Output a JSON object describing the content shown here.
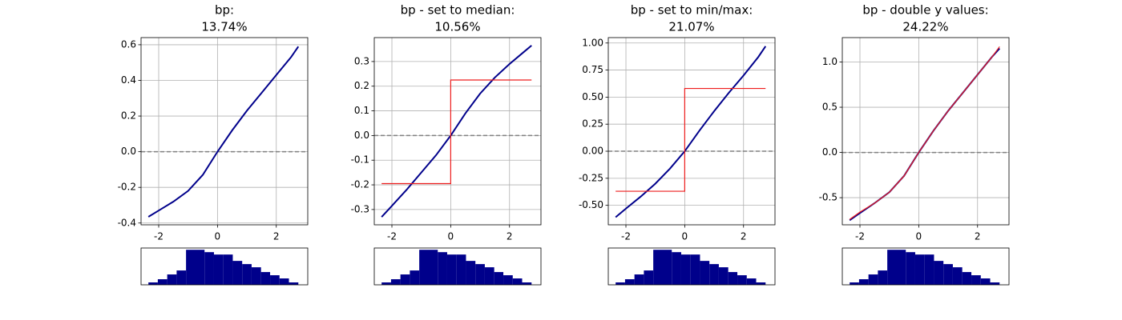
{
  "chart_data": [
    {
      "type": "line",
      "title": "bp:",
      "subtitle": "13.74%",
      "xlim": [
        -2.6,
        3.07
      ],
      "xticks": [
        -2,
        0,
        2
      ],
      "ylim": [
        -0.41,
        0.64
      ],
      "yticks": [
        -0.4,
        -0.2,
        {
          "value": 0,
          "label": "0.0"
        },
        0.2,
        0.4,
        0.6
      ],
      "grid": true,
      "reference_line": 0,
      "reference_color": "#808080",
      "series": [
        {
          "color": "#00008b",
          "x": [
            -2.35,
            -2,
            -1.5,
            -1,
            -0.5,
            0,
            0.5,
            1,
            1.5,
            2,
            2.5,
            2.75
          ],
          "values": [
            -0.365,
            -0.33,
            -0.28,
            -0.22,
            -0.13,
            0,
            0.12,
            0.23,
            0.33,
            0.43,
            0.53,
            0.59
          ]
        }
      ]
    },
    {
      "type": "line",
      "title": "bp - set to median:",
      "subtitle": "10.56%",
      "xlim": [
        -2.6,
        3.07
      ],
      "xticks": [
        -2,
        0,
        2
      ],
      "ylim": [
        -0.362,
        0.397
      ],
      "yticks": [
        -0.3,
        -0.2,
        -0.1,
        {
          "value": 0,
          "label": "0.0"
        },
        0.1,
        0.2,
        0.3
      ],
      "grid": true,
      "reference_line": 0,
      "reference_color": "#808080",
      "series": [
        {
          "color": "#00008b",
          "x": [
            -2.35,
            -2,
            -1.5,
            -1,
            -0.5,
            0,
            0.5,
            1,
            1.5,
            2,
            2.5,
            2.75
          ],
          "values": [
            -0.33,
            -0.285,
            -0.22,
            -0.15,
            -0.08,
            0,
            0.09,
            0.17,
            0.235,
            0.29,
            0.34,
            0.365
          ]
        },
        {
          "color": "#ee1c1c",
          "x": [
            -2.35,
            0,
            0,
            2.75
          ],
          "values": [
            -0.195,
            -0.195,
            0.225,
            0.225
          ]
        }
      ]
    },
    {
      "type": "line",
      "title": "bp - set to min/max:",
      "subtitle": "21.07%",
      "xlim": [
        -2.6,
        3.07
      ],
      "xticks": [
        -2,
        0,
        2
      ],
      "ylim": [
        -0.68,
        1.05
      ],
      "yticks": [
        {
          "value": -0.5,
          "label": "-0.50"
        },
        {
          "value": -0.25,
          "label": "-0.25"
        },
        {
          "value": 0,
          "label": "0.00"
        },
        {
          "value": 0.25,
          "label": "0.25"
        },
        {
          "value": 0.5,
          "label": "0.50"
        },
        {
          "value": 0.75,
          "label": "0.75"
        },
        {
          "value": 1,
          "label": "1.00"
        }
      ],
      "grid": true,
      "reference_line": 0,
      "reference_color": "#808080",
      "series": [
        {
          "color": "#00008b",
          "x": [
            -2.35,
            -2,
            -1.5,
            -1,
            -0.5,
            0,
            0.5,
            1,
            1.5,
            2,
            2.5,
            2.75
          ],
          "values": [
            -0.61,
            -0.53,
            -0.42,
            -0.3,
            -0.16,
            0,
            0.19,
            0.37,
            0.54,
            0.7,
            0.87,
            0.97
          ]
        },
        {
          "color": "#ee1c1c",
          "x": [
            -2.35,
            0,
            0,
            2.75
          ],
          "values": [
            -0.37,
            -0.37,
            0.58,
            0.58
          ]
        }
      ]
    },
    {
      "type": "line",
      "title": "bp - double y values:",
      "subtitle": "24.22%",
      "xlim": [
        -2.6,
        3.07
      ],
      "xticks": [
        -2,
        0,
        2
      ],
      "ylim": [
        -0.8,
        1.27
      ],
      "yticks": [
        -0.5,
        {
          "value": 0,
          "label": "0.0"
        },
        0.5,
        {
          "value": 1,
          "label": "1.0"
        }
      ],
      "grid": true,
      "reference_line": 0,
      "reference_color": "#808080",
      "series": [
        {
          "color": "#00008b",
          "x": [
            -2.35,
            -2,
            -1.5,
            -1,
            -0.5,
            0,
            0.5,
            1,
            1.5,
            2,
            2.5,
            2.75
          ],
          "values": [
            -0.75,
            -0.67,
            -0.56,
            -0.44,
            -0.26,
            0,
            0.24,
            0.46,
            0.66,
            0.86,
            1.06,
            1.15
          ]
        },
        {
          "color": "#ee1c1c",
          "x": [
            -2.35,
            -2,
            -1.5,
            -1,
            -0.5,
            0,
            0.5,
            1,
            1.5,
            2,
            2.5,
            2.75
          ],
          "values": [
            -0.74,
            -0.66,
            -0.56,
            -0.44,
            -0.26,
            0,
            0.24,
            0.46,
            0.66,
            0.86,
            1.06,
            1.17
          ]
        }
      ]
    },
    {
      "type": "histogram",
      "xlim": [
        -2.6,
        3.07
      ],
      "color": "#00008b",
      "bins": [
        -2.35,
        -2.03,
        -1.71,
        -1.39,
        -1.07,
        -0.76,
        -0.44,
        -0.12,
        0.2,
        0.52,
        0.84,
        1.16,
        1.48,
        1.79,
        2.11,
        2.43,
        2.75
      ],
      "values": [
        3,
        7,
        13,
        18,
        44,
        44,
        41,
        38,
        38,
        30,
        26,
        22,
        16,
        12,
        8,
        3
      ]
    },
    {
      "type": "histogram",
      "xlim": [
        -2.6,
        3.07
      ],
      "color": "#00008b",
      "bins": [
        -2.35,
        -2.03,
        -1.71,
        -1.39,
        -1.07,
        -0.76,
        -0.44,
        -0.12,
        0.2,
        0.52,
        0.84,
        1.16,
        1.48,
        1.79,
        2.11,
        2.43,
        2.75
      ],
      "values": [
        3,
        7,
        13,
        18,
        44,
        44,
        41,
        38,
        38,
        30,
        26,
        22,
        16,
        12,
        8,
        3
      ]
    },
    {
      "type": "histogram",
      "xlim": [
        -2.6,
        3.07
      ],
      "color": "#00008b",
      "bins": [
        -2.35,
        -2.03,
        -1.71,
        -1.39,
        -1.07,
        -0.76,
        -0.44,
        -0.12,
        0.2,
        0.52,
        0.84,
        1.16,
        1.48,
        1.79,
        2.11,
        2.43,
        2.75
      ],
      "values": [
        3,
        7,
        13,
        18,
        44,
        44,
        41,
        38,
        38,
        30,
        26,
        22,
        16,
        12,
        8,
        3
      ]
    },
    {
      "type": "histogram",
      "xlim": [
        -2.6,
        3.07
      ],
      "color": "#00008b",
      "bins": [
        -2.35,
        -2.03,
        -1.71,
        -1.39,
        -1.07,
        -0.76,
        -0.44,
        -0.12,
        0.2,
        0.52,
        0.84,
        1.16,
        1.48,
        1.79,
        2.11,
        2.43,
        2.75
      ],
      "values": [
        3,
        7,
        13,
        18,
        44,
        44,
        41,
        38,
        38,
        30,
        26,
        22,
        16,
        12,
        8,
        3
      ]
    }
  ]
}
